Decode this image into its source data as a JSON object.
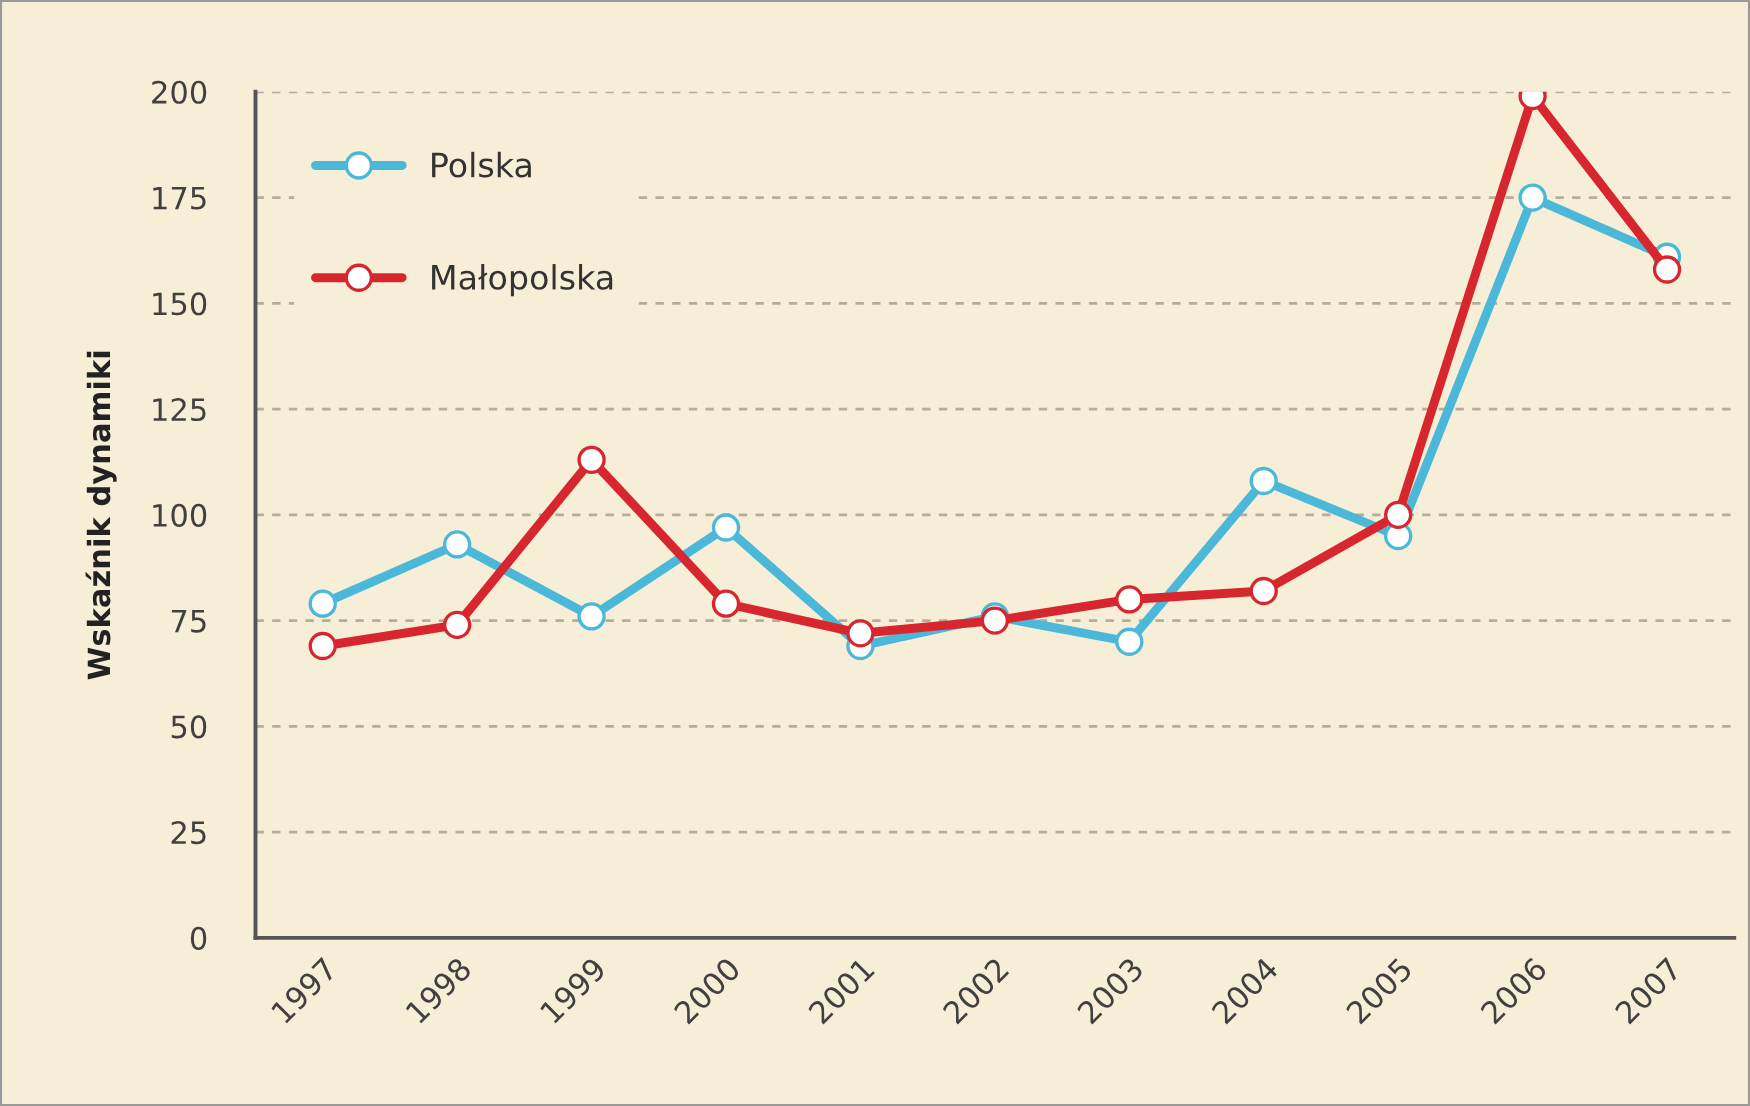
{
  "chart_data": {
    "type": "line",
    "ylabel": "Wskaźnik dynamiki",
    "categories": [
      "1997",
      "1998",
      "1999",
      "2000",
      "2001",
      "2002",
      "2003",
      "2004",
      "2005",
      "2006",
      "2007"
    ],
    "series": [
      {
        "name": "Polska",
        "color": "#4cb8d9",
        "values": [
          79,
          93,
          76,
          97,
          69,
          76,
          70,
          108,
          95,
          175,
          161
        ]
      },
      {
        "name": "Małopolska",
        "color": "#d8262f",
        "values": [
          69,
          74,
          113,
          79,
          72,
          75,
          80,
          82,
          100,
          199,
          158
        ]
      }
    ],
    "ylim": [
      0,
      200
    ],
    "yticks": [
      0,
      25,
      50,
      75,
      100,
      125,
      150,
      175,
      200
    ],
    "grid": "y",
    "legend": "top left",
    "marker": "circle",
    "line_style": "solid"
  }
}
